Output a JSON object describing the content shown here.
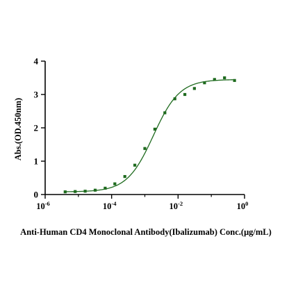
{
  "chart_data": {
    "type": "scatter",
    "title": "",
    "xlabel": "Anti-Human CD4 Monoclonal Antibody(Ibalizumab) Conc.(μg/mL)",
    "ylabel": "Abs.(OD.450nm)",
    "x_scale": "log",
    "xlim": [
      1e-06,
      1
    ],
    "ylim": [
      0,
      4
    ],
    "x_ticks": [
      {
        "value": 1e-06,
        "base": "10",
        "exp": "-6"
      },
      {
        "value": 0.0001,
        "base": "10",
        "exp": "-4"
      },
      {
        "value": 0.01,
        "base": "10",
        "exp": "-2"
      },
      {
        "value": 1,
        "base": "10",
        "exp": "0"
      }
    ],
    "y_ticks": [
      {
        "value": 0,
        "label": "0"
      },
      {
        "value": 1,
        "label": "1"
      },
      {
        "value": 2,
        "label": "2"
      },
      {
        "value": 3,
        "label": "3"
      },
      {
        "value": 4,
        "label": "4"
      }
    ],
    "grid": false,
    "legend": "none",
    "color": "#1f6b1f",
    "series": [
      {
        "points": [
          {
            "x": 4e-06,
            "y": 0.08
          },
          {
            "x": 8e-06,
            "y": 0.09
          },
          {
            "x": 1.6e-05,
            "y": 0.1
          },
          {
            "x": 3.2e-05,
            "y": 0.13
          },
          {
            "x": 6.4e-05,
            "y": 0.19
          },
          {
            "x": 0.000125,
            "y": 0.32
          },
          {
            "x": 0.00025,
            "y": 0.54
          },
          {
            "x": 0.0005,
            "y": 0.88
          },
          {
            "x": 0.001,
            "y": 1.38
          },
          {
            "x": 0.002,
            "y": 1.96
          },
          {
            "x": 0.004,
            "y": 2.45
          },
          {
            "x": 0.008,
            "y": 2.87
          },
          {
            "x": 0.016,
            "y": 3.0
          },
          {
            "x": 0.031,
            "y": 3.18
          },
          {
            "x": 0.0625,
            "y": 3.35
          },
          {
            "x": 0.125,
            "y": 3.45
          },
          {
            "x": 0.25,
            "y": 3.5
          },
          {
            "x": 0.5,
            "y": 3.42
          }
        ],
        "fit": {
          "model": "4PL",
          "bottom": 0.08,
          "top": 3.45,
          "ec50": 0.0018,
          "hill": 1.1,
          "x_from": 4e-06,
          "x_to": 0.5
        }
      }
    ]
  }
}
